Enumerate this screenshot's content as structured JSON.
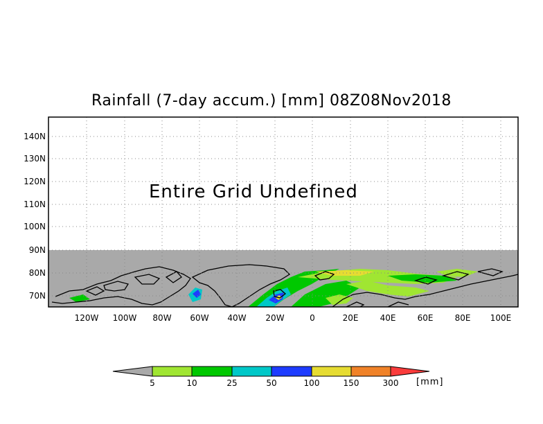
{
  "title": "Rainfall (7-day accum.) [mm] 08Z08Nov2018",
  "overlay_message": "Entire Grid Undefined",
  "map": {
    "lat_labels": [
      "140N",
      "130N",
      "120N",
      "110N",
      "100N",
      "90N",
      "80N",
      "70N"
    ],
    "lon_labels": [
      "120W",
      "100W",
      "80W",
      "60W",
      "40W",
      "20W",
      "0",
      "20E",
      "40E",
      "60E",
      "80E",
      "100E"
    ],
    "undefined_color": "#a9a9a9"
  },
  "colorbar": {
    "labels": [
      "5",
      "10",
      "25",
      "50",
      "100",
      "150",
      "300"
    ],
    "unit": "[mm]",
    "colors": [
      "#a0e632",
      "#00c800",
      "#00c8c8",
      "#1e3cff",
      "#e6dc32",
      "#f08228",
      "#fa3c3c"
    ],
    "below_color": "#a9a9a9"
  }
}
